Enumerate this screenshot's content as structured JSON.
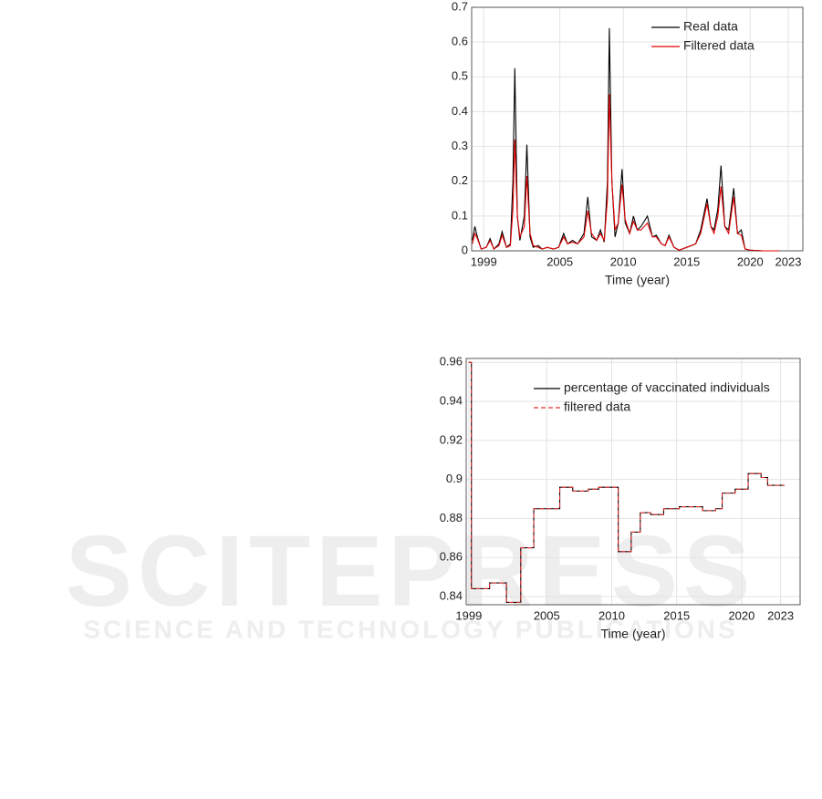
{
  "chart_data": [
    {
      "type": "line",
      "xlabel": "Time (year)",
      "grid": true,
      "legend": "upper right",
      "xlim": [
        1998.05,
        2024.15
      ],
      "xticks": [
        1999,
        2005,
        2010,
        2015,
        2020,
        2023
      ],
      "ylim": [
        0,
        0.7
      ],
      "yticks": [
        0,
        0.1,
        0.2,
        0.3,
        0.4,
        0.5,
        0.6,
        0.7
      ],
      "x": [
        1998.1,
        1998.3,
        1998.5,
        1998.8,
        1999.2,
        1999.5,
        1999.8,
        2000.2,
        2000.45,
        2000.8,
        2001.1,
        2001.3,
        2001.45,
        2001.65,
        2001.85,
        2002.2,
        2002.4,
        2002.65,
        2002.9,
        2003.3,
        2003.6,
        2004,
        2004.5,
        2004.9,
        2005.3,
        2005.6,
        2006,
        2006.4,
        2006.9,
        2007.2,
        2007.5,
        2007.9,
        2008.2,
        2008.5,
        2008.75,
        2008.9,
        2009.1,
        2009.35,
        2009.6,
        2009.9,
        2010.15,
        2010.5,
        2010.8,
        2011.1,
        2011.4,
        2011.9,
        2012.3,
        2012.6,
        2013,
        2013.3,
        2013.6,
        2014,
        2014.4,
        2015,
        2015.7,
        2016.1,
        2016.6,
        2016.9,
        2017.15,
        2017.45,
        2017.7,
        2018,
        2018.3,
        2018.7,
        2019,
        2019.3,
        2019.6,
        2020,
        2021,
        2022.3
      ],
      "series": [
        {
          "name": "Real data",
          "color": "#000000",
          "line_style": "solid",
          "values": [
            0.03,
            0.07,
            0.04,
            0.005,
            0.01,
            0.035,
            0.005,
            0.02,
            0.055,
            0.01,
            0.02,
            0.2,
            0.525,
            0.1,
            0.03,
            0.1,
            0.305,
            0.04,
            0.01,
            0.015,
            0.005,
            0.01,
            0.005,
            0.01,
            0.05,
            0.02,
            0.03,
            0.02,
            0.05,
            0.155,
            0.04,
            0.03,
            0.06,
            0.025,
            0.2,
            0.64,
            0.2,
            0.04,
            0.08,
            0.235,
            0.08,
            0.05,
            0.1,
            0.06,
            0.07,
            0.1,
            0.04,
            0.045,
            0.02,
            0.015,
            0.045,
            0.01,
            0.002,
            0.01,
            0.02,
            0.06,
            0.15,
            0.07,
            0.06,
            0.12,
            0.245,
            0.07,
            0.06,
            0.18,
            0.05,
            0.06,
            0.005,
            0.002,
            0,
            0
          ]
        },
        {
          "name": "Filtered data",
          "color": "#e00000",
          "line_style": "solid",
          "values": [
            0.02,
            0.05,
            0.035,
            0.005,
            0.01,
            0.03,
            0.005,
            0.015,
            0.045,
            0.01,
            0.015,
            0.12,
            0.32,
            0.1,
            0.04,
            0.07,
            0.215,
            0.05,
            0.015,
            0.01,
            0.005,
            0.01,
            0.005,
            0.01,
            0.04,
            0.02,
            0.025,
            0.02,
            0.04,
            0.115,
            0.05,
            0.03,
            0.05,
            0.03,
            0.15,
            0.45,
            0.2,
            0.06,
            0.08,
            0.19,
            0.09,
            0.05,
            0.085,
            0.06,
            0.06,
            0.08,
            0.04,
            0.04,
            0.02,
            0.015,
            0.04,
            0.01,
            0.002,
            0.01,
            0.02,
            0.05,
            0.135,
            0.07,
            0.05,
            0.1,
            0.185,
            0.07,
            0.05,
            0.155,
            0.05,
            0.045,
            0.005,
            0.002,
            0,
            0
          ]
        }
      ]
    },
    {
      "type": "line",
      "xlabel": "Time (year)",
      "grid": true,
      "legend": "upper right",
      "xlim": [
        1998.8,
        2024.5
      ],
      "xticks": [
        1999,
        2005,
        2010,
        2015,
        2020,
        2023
      ],
      "ylim": [
        0.8358,
        0.962
      ],
      "yticks": [
        0.84,
        0.86,
        0.88,
        0.9,
        0.92,
        0.94,
        0.96
      ],
      "x": [
        1999,
        1999.2,
        1999.2,
        2000.6,
        2000.6,
        2001.9,
        2001.9,
        2003,
        2003,
        2004,
        2004,
        2006,
        2006,
        2007,
        2007,
        2008.2,
        2008.2,
        2009,
        2009,
        2010.5,
        2010.5,
        2011.5,
        2011.5,
        2012.2,
        2012.2,
        2013,
        2013,
        2014,
        2014,
        2015.2,
        2015.2,
        2017,
        2017,
        2018,
        2018,
        2018.5,
        2018.5,
        2019.5,
        2019.5,
        2020.5,
        2020.5,
        2021.5,
        2021.5,
        2022,
        2022,
        2023.3
      ],
      "series": [
        {
          "name": "percentage of vaccinated individuals",
          "color": "#000000",
          "line_style": "solid",
          "values": [
            0.96,
            0.96,
            0.844,
            0.844,
            0.847,
            0.847,
            0.837,
            0.837,
            0.865,
            0.865,
            0.885,
            0.885,
            0.896,
            0.896,
            0.894,
            0.894,
            0.895,
            0.895,
            0.896,
            0.896,
            0.863,
            0.863,
            0.873,
            0.873,
            0.883,
            0.883,
            0.882,
            0.882,
            0.885,
            0.885,
            0.886,
            0.886,
            0.884,
            0.884,
            0.885,
            0.885,
            0.893,
            0.893,
            0.895,
            0.895,
            0.903,
            0.903,
            0.901,
            0.901,
            0.897,
            0.897
          ]
        },
        {
          "name": "filtered data",
          "color": "#e03030",
          "line_style": "dashed",
          "values": [
            0.96,
            0.96,
            0.844,
            0.844,
            0.847,
            0.847,
            0.837,
            0.837,
            0.865,
            0.865,
            0.885,
            0.885,
            0.896,
            0.896,
            0.894,
            0.894,
            0.895,
            0.895,
            0.896,
            0.896,
            0.863,
            0.863,
            0.873,
            0.873,
            0.883,
            0.883,
            0.882,
            0.882,
            0.885,
            0.885,
            0.886,
            0.886,
            0.884,
            0.884,
            0.885,
            0.885,
            0.893,
            0.893,
            0.895,
            0.895,
            0.903,
            0.903,
            0.901,
            0.901,
            0.897,
            0.897
          ]
        }
      ]
    }
  ],
  "watermark": {
    "title": "SCITEPRESS",
    "subtitle": "SCIENCE AND TECHNOLOGY PUBLICATIONS"
  }
}
